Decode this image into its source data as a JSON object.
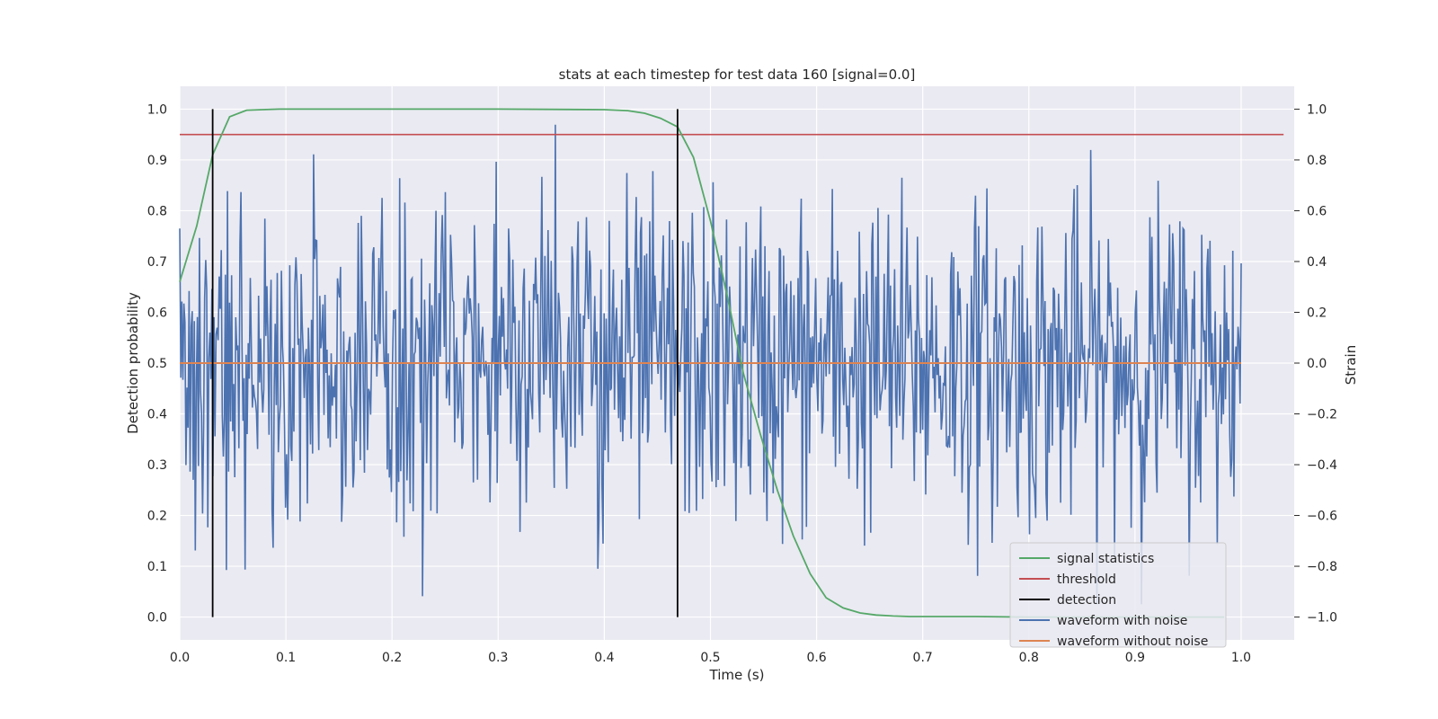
{
  "chart_data": {
    "type": "line",
    "title": "stats at each timestep for test data 160 [signal=0.0]",
    "xlabel": "Time (s)",
    "ylabel": "Detection probability",
    "ylabel_right": "Strain",
    "xlim": [
      0.0,
      1.05
    ],
    "ylim": [
      -0.045,
      1.045
    ],
    "ylim_right": [
      -1.09,
      1.09
    ],
    "grid": true,
    "legend_position": "lower right",
    "x_ticks": [
      "0.0",
      "0.1",
      "0.2",
      "0.3",
      "0.4",
      "0.5",
      "0.6",
      "0.7",
      "0.8",
      "0.9",
      "1.0"
    ],
    "y_ticks": [
      "0.0",
      "0.1",
      "0.2",
      "0.3",
      "0.4",
      "0.5",
      "0.6",
      "0.7",
      "0.8",
      "0.9",
      "1.0"
    ],
    "y_right_ticks": [
      "−1.0",
      "−0.8",
      "−0.6",
      "−0.4",
      "−0.2",
      "0.0",
      "0.2",
      "0.4",
      "0.6",
      "0.8",
      "1.0"
    ],
    "series": [
      {
        "name": "signal statistics",
        "axis": "left",
        "color": "#55a868",
        "x": [
          0.0,
          0.016,
          0.031,
          0.047,
          0.063,
          0.078,
          0.094,
          0.2,
          0.3,
          0.4,
          0.422,
          0.438,
          0.453,
          0.469,
          0.484,
          0.5,
          0.516,
          0.531,
          0.547,
          0.563,
          0.578,
          0.594,
          0.609,
          0.625,
          0.641,
          0.656,
          0.672,
          0.688,
          0.703,
          0.75,
          0.8,
          0.85,
          0.9,
          0.95,
          0.984
        ],
        "y": [
          0.66,
          0.77,
          0.91,
          0.985,
          0.998,
          0.999,
          1.0,
          1.0,
          1.0,
          0.999,
          0.997,
          0.992,
          0.982,
          0.965,
          0.905,
          0.78,
          0.63,
          0.48,
          0.36,
          0.25,
          0.16,
          0.085,
          0.038,
          0.018,
          0.008,
          0.004,
          0.002,
          0.001,
          0.001,
          0.001,
          0.0,
          0.0,
          0.0,
          0.0,
          0.0
        ]
      },
      {
        "name": "threshold",
        "axis": "left",
        "color": "#c44e52",
        "x": [
          0.0,
          1.04
        ],
        "y": [
          0.95,
          0.95
        ]
      },
      {
        "name": "detection",
        "axis": "left",
        "color": "#000000",
        "x_positions": [
          0.031,
          0.469
        ],
        "y_range": [
          0.0,
          1.0
        ]
      },
      {
        "name": "waveform with noise",
        "axis": "right",
        "color": "#4c72b0",
        "x_range": [
          0.0,
          1.0
        ],
        "points": 1024,
        "amplitude_max": 1.0
      },
      {
        "name": "waveform without noise",
        "axis": "right",
        "color": "#dd8452",
        "x": [
          0.0,
          1.0
        ],
        "y": [
          0.0,
          0.0
        ]
      }
    ]
  }
}
